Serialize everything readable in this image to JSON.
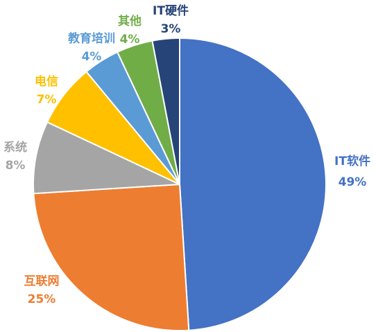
{
  "chart_data": {
    "type": "pie",
    "title": "",
    "categories": [
      "IT软件",
      "互联网",
      "系统",
      "电信",
      "教育培训",
      "其他",
      "IT硬件"
    ],
    "values": [
      49,
      25,
      8,
      7,
      4,
      4,
      3
    ],
    "value_labels": [
      "49%",
      "25%",
      "8%",
      "7%",
      "4%",
      "4%",
      "3%"
    ],
    "colors": [
      "#4472C4",
      "#ED7D31",
      "#A5A5A5",
      "#FFC000",
      "#5B9BD5",
      "#70AD47",
      "#264478"
    ],
    "start_angle_deg": 0,
    "direction": "clockwise",
    "legend": "none",
    "data_labels": "outside, category name above percentage"
  }
}
